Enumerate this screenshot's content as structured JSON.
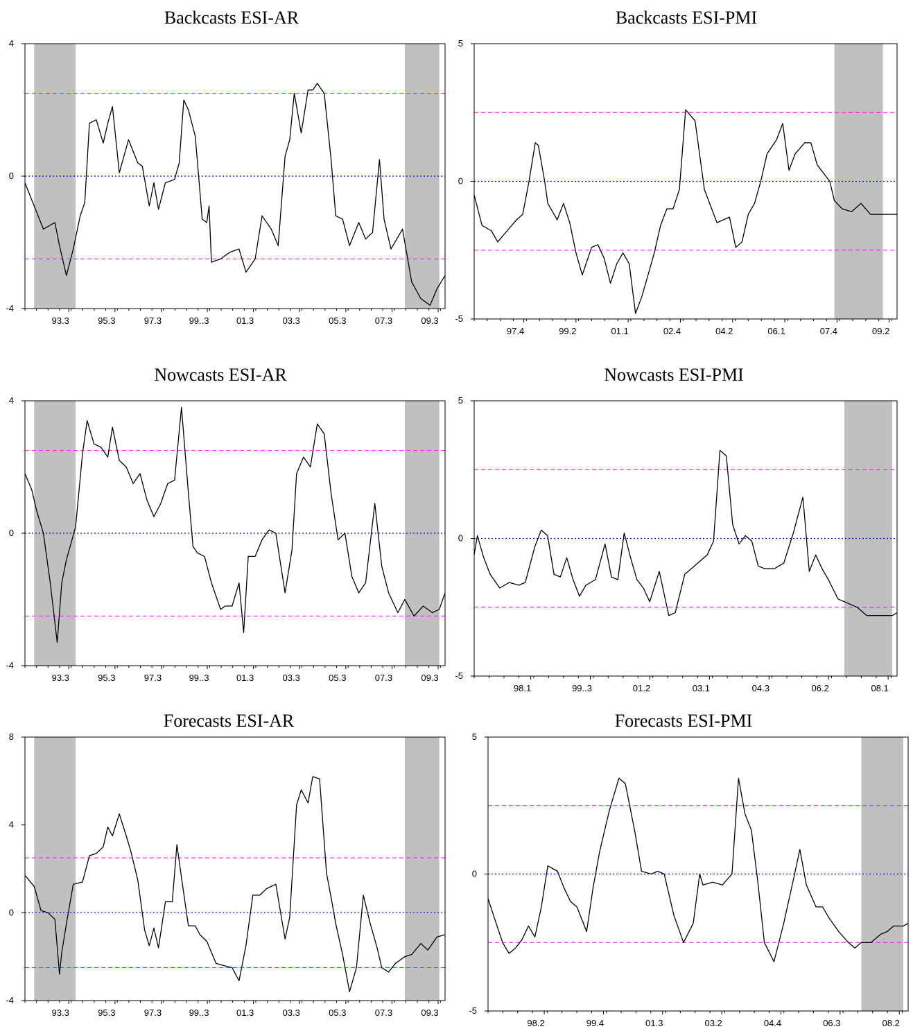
{
  "colors": {
    "threshold": "#ff00ff",
    "zero_line": "#0000c0",
    "shade": "#c0c0c0",
    "series": "#000000"
  },
  "chart_data": [
    {
      "type": "line",
      "title": "Backcasts ESI-AR",
      "ylim": [
        -4,
        4
      ],
      "yticks": [
        "4",
        "0",
        "-4"
      ],
      "xticks": [
        "93.3",
        "95.3",
        "97.3",
        "99..3",
        "01.3",
        "03.3",
        "05.3",
        "07.3",
        "09.3"
      ],
      "x_start": "1991.5",
      "x_end": "2009.75",
      "shaded": [
        [
          "1991.9",
          "1993.7"
        ],
        [
          "2008.0",
          "2009.5"
        ]
      ],
      "thresholds": [
        2.5,
        -2.5
      ],
      "zero_line": 0,
      "x": [
        1991.5,
        1991.9,
        1992.3,
        1992.8,
        1993.0,
        1993.3,
        1993.6,
        1993.9,
        1994.1,
        1994.3,
        1994.6,
        1994.9,
        1995.1,
        1995.3,
        1995.6,
        1996.0,
        1996.4,
        1996.6,
        1996.9,
        1997.1,
        1997.3,
        1997.6,
        1998.0,
        1998.2,
        1998.4,
        1998.6,
        1998.9,
        1999.2,
        1999.4,
        1999.5,
        1999.6,
        2000.0,
        2000.4,
        2000.8,
        2001.1,
        2001.5,
        2001.8,
        2002.2,
        2002.5,
        2002.8,
        2003.0,
        2003.2,
        2003.5,
        2003.8,
        2004.0,
        2004.2,
        2004.5,
        2004.8,
        2005.0,
        2005.3,
        2005.6,
        2006.0,
        2006.3,
        2006.6,
        2006.9,
        2007.1,
        2007.4,
        2007.9,
        2008.3,
        2008.7,
        2009.1,
        2009.4,
        2009.75
      ],
      "series": [
        {
          "values": [
            -0.2,
            -0.9,
            -1.6,
            -1.4,
            -2.1,
            -3.0,
            -2.2,
            -1.2,
            -0.8,
            1.6,
            1.7,
            1.0,
            1.6,
            2.1,
            0.1,
            1.1,
            0.4,
            0.3,
            -0.9,
            -0.2,
            -1.0,
            -0.2,
            -0.1,
            0.4,
            2.3,
            2.0,
            1.2,
            -1.3,
            -1.4,
            -0.9,
            -2.6,
            -2.5,
            -2.3,
            -2.2,
            -2.9,
            -2.5,
            -1.2,
            -1.6,
            -2.1,
            0.6,
            1.1,
            2.5,
            1.3,
            2.6,
            2.6,
            2.8,
            2.5,
            0.5,
            -1.2,
            -1.3,
            -2.1,
            -1.4,
            -1.9,
            -1.7,
            0.5,
            -1.3,
            -2.2,
            -1.6,
            -3.2,
            -3.7,
            -3.9,
            -3.4,
            -3.0
          ]
        }
      ]
    },
    {
      "type": "line",
      "title": "Backcasts ESI-PMI",
      "ylim": [
        -5,
        5
      ],
      "yticks": [
        "5",
        "0",
        "-5"
      ],
      "xticks": [
        "97.4",
        "99.2",
        "01.1",
        "02.4",
        "04.2",
        "06.1",
        "07.4",
        "09.2"
      ],
      "x_start": "1996.25",
      "x_end": "2009.75",
      "shaded": [
        [
          "2007.75",
          "2009.3"
        ]
      ],
      "thresholds": [
        2.5,
        -2.5
      ],
      "zero_line": 0,
      "x": [
        1996.25,
        1996.5,
        1996.8,
        1997.0,
        1997.3,
        1997.6,
        1997.8,
        1998.0,
        1998.2,
        1998.3,
        1998.5,
        1998.6,
        1998.8,
        1998.9,
        1999.1,
        1999.3,
        1999.5,
        1999.7,
        2000.0,
        2000.2,
        2000.4,
        2000.6,
        2000.8,
        2001.0,
        2001.2,
        2001.4,
        2001.6,
        2001.8,
        2002.0,
        2002.2,
        2002.4,
        2002.6,
        2002.8,
        2003.0,
        2003.3,
        2003.6,
        2004.0,
        2004.2,
        2004.4,
        2004.6,
        2004.8,
        2005.0,
        2005.2,
        2005.4,
        2005.6,
        2005.9,
        2006.1,
        2006.3,
        2006.5,
        2006.8,
        2007.0,
        2007.2,
        2007.4,
        2007.6,
        2007.75,
        2008.0,
        2008.3,
        2008.6,
        2008.9,
        2009.2,
        2009.5,
        2009.75
      ],
      "series": [
        {
          "values": [
            -0.5,
            -1.6,
            -1.8,
            -2.2,
            -1.8,
            -1.4,
            -1.2,
            0.0,
            1.4,
            1.3,
            0.0,
            -0.8,
            -1.2,
            -1.4,
            -0.8,
            -1.5,
            -2.6,
            -3.4,
            -2.4,
            -2.3,
            -2.8,
            -3.7,
            -3.0,
            -2.6,
            -3.0,
            -4.8,
            -4.2,
            -3.4,
            -2.6,
            -1.6,
            -1.0,
            -1.0,
            -0.3,
            2.6,
            2.2,
            -0.3,
            -1.5,
            -1.4,
            -1.3,
            -2.4,
            -2.2,
            -1.2,
            -0.8,
            0.0,
            1.0,
            1.5,
            2.1,
            0.4,
            1.0,
            1.4,
            1.4,
            0.6,
            0.3,
            0.0,
            -0.7,
            -1.0,
            -1.1,
            -0.8,
            -1.2,
            -1.2,
            -1.2,
            -1.2
          ]
        }
      ]
    },
    {
      "type": "line",
      "title": "Nowcasts ESI-AR",
      "ylim": [
        -4,
        4
      ],
      "yticks": [
        "4",
        "0",
        "-4"
      ],
      "xticks": [
        "93.3",
        "95.3",
        "97.3",
        "99..3",
        "01.3",
        "03.3",
        "05.3",
        "07.3",
        "09.3"
      ],
      "x_start": "1991.5",
      "x_end": "2009.75",
      "shaded": [
        [
          "1991.9",
          "1993.7"
        ],
        [
          "2008.0",
          "2009.5"
        ]
      ],
      "thresholds": [
        2.5,
        -2.5
      ],
      "zero_line": 0,
      "x": [
        1991.5,
        1991.8,
        1992.0,
        1992.3,
        1992.6,
        1992.9,
        1993.1,
        1993.3,
        1993.7,
        1994.0,
        1994.2,
        1994.5,
        1994.8,
        1995.1,
        1995.3,
        1995.6,
        1995.9,
        1996.2,
        1996.5,
        1996.8,
        1997.1,
        1997.4,
        1997.7,
        1998.0,
        1998.3,
        1998.6,
        1998.8,
        1999.0,
        1999.3,
        1999.6,
        2000.0,
        2000.2,
        2000.5,
        2000.8,
        2001.0,
        2001.2,
        2001.5,
        2001.8,
        2002.1,
        2002.4,
        2002.8,
        2003.1,
        2003.3,
        2003.6,
        2003.9,
        2004.2,
        2004.5,
        2004.8,
        2005.1,
        2005.4,
        2005.7,
        2006.0,
        2006.3,
        2006.7,
        2007.0,
        2007.3,
        2007.7,
        2008.0,
        2008.4,
        2008.8,
        2009.2,
        2009.5,
        2009.75
      ],
      "series": [
        {
          "values": [
            1.8,
            1.3,
            0.7,
            0.0,
            -1.5,
            -3.3,
            -1.5,
            -0.8,
            0.2,
            2.4,
            3.4,
            2.7,
            2.6,
            2.3,
            3.2,
            2.2,
            2.0,
            1.5,
            1.8,
            1.0,
            0.5,
            0.9,
            1.5,
            1.6,
            3.8,
            1.2,
            -0.4,
            -0.6,
            -0.7,
            -1.5,
            -2.3,
            -2.2,
            -2.2,
            -1.5,
            -3.0,
            -0.7,
            -0.7,
            -0.2,
            0.1,
            0.0,
            -1.8,
            -0.5,
            1.8,
            2.3,
            2.0,
            3.3,
            3.0,
            1.2,
            -0.2,
            0.0,
            -1.3,
            -1.8,
            -1.5,
            0.9,
            -1.0,
            -1.8,
            -2.4,
            -2.0,
            -2.5,
            -2.2,
            -2.4,
            -2.3,
            -1.8
          ]
        }
      ]
    },
    {
      "type": "line",
      "title": "Nowcasts ESI-PMI",
      "ylim": [
        -5,
        5
      ],
      "yticks": [
        "5",
        "0",
        "-5"
      ],
      "xticks": [
        "98.1",
        "99..3",
        "01.2",
        "03.1",
        "04.3",
        "06.2",
        "08.1"
      ],
      "x_start": "1996.5",
      "x_end": "2009.75",
      "shaded": [
        [
          "2008.1",
          "2009.6"
        ]
      ],
      "thresholds": [
        2.5,
        -2.5
      ],
      "zero_line": 0,
      "x": [
        1996.5,
        1996.6,
        1996.8,
        1997.0,
        1997.3,
        1997.6,
        1997.9,
        1998.1,
        1998.4,
        1998.6,
        1998.8,
        1999.0,
        1999.2,
        1999.4,
        1999.6,
        1999.8,
        2000.0,
        2000.3,
        2000.6,
        2000.8,
        2001.0,
        2001.2,
        2001.4,
        2001.6,
        2001.8,
        2002.0,
        2002.3,
        2002.6,
        2002.8,
        2003.1,
        2003.3,
        2003.5,
        2003.8,
        2004.0,
        2004.2,
        2004.4,
        2004.6,
        2004.8,
        2005.0,
        2005.2,
        2005.4,
        2005.6,
        2005.9,
        2006.2,
        2006.5,
        2006.8,
        2007.0,
        2007.2,
        2007.4,
        2007.6,
        2007.9,
        2008.1,
        2008.5,
        2008.8,
        2009.0,
        2009.3,
        2009.6,
        2009.75
      ],
      "series": [
        {
          "values": [
            -0.6,
            0.1,
            -0.7,
            -1.3,
            -1.8,
            -1.6,
            -1.7,
            -1.6,
            -0.3,
            0.3,
            0.1,
            -1.3,
            -1.4,
            -0.7,
            -1.5,
            -2.1,
            -1.7,
            -1.5,
            -0.2,
            -1.4,
            -1.5,
            0.2,
            -0.7,
            -1.5,
            -1.8,
            -2.3,
            -1.2,
            -2.8,
            -2.7,
            -1.3,
            -1.1,
            -0.9,
            -0.6,
            -0.1,
            3.2,
            3.0,
            0.5,
            -0.2,
            0.1,
            -0.1,
            -1.0,
            -1.1,
            -1.1,
            -0.9,
            0.2,
            1.5,
            -1.2,
            -0.6,
            -1.1,
            -1.5,
            -2.2,
            -2.3,
            -2.5,
            -2.8,
            -2.8,
            -2.8,
            -2.8,
            -2.7
          ]
        }
      ]
    },
    {
      "type": "line",
      "title": "Forecasts ESI-AR",
      "ylim": [
        -4,
        8
      ],
      "yticks": [
        "8",
        "4",
        "0",
        "-4"
      ],
      "xticks": [
        "93.3",
        "95.3",
        "97.3",
        "99..3",
        "01.3",
        "03.3",
        "05.3",
        "07.3",
        "09.3"
      ],
      "x_start": "1991.5",
      "x_end": "2009.75",
      "shaded": [
        [
          "1991.9",
          "1993.7"
        ],
        [
          "2008.0",
          "2009.5"
        ]
      ],
      "thresholds": [
        2.5,
        -2.5
      ],
      "zero_line": 0,
      "x": [
        1991.5,
        1991.9,
        1992.2,
        1992.5,
        1992.8,
        1993.0,
        1993.1,
        1993.3,
        1993.6,
        1994.0,
        1994.3,
        1994.6,
        1994.9,
        1995.1,
        1995.3,
        1995.6,
        1995.9,
        1996.1,
        1996.4,
        1996.7,
        1996.9,
        1997.1,
        1997.3,
        1997.6,
        1997.9,
        1998.1,
        1998.3,
        1998.6,
        1998.9,
        1999.1,
        1999.4,
        1999.8,
        2000.1,
        2000.5,
        2000.8,
        2001.1,
        2001.4,
        2001.7,
        2002.0,
        2002.4,
        2002.8,
        2003.0,
        2003.3,
        2003.5,
        2003.8,
        2004.0,
        2004.3,
        2004.6,
        2004.8,
        2005.0,
        2005.3,
        2005.6,
        2005.9,
        2006.2,
        2006.5,
        2006.8,
        2007.0,
        2007.3,
        2007.6,
        2008.0,
        2008.3,
        2008.7,
        2009.0,
        2009.4,
        2009.75
      ],
      "series": [
        {
          "values": [
            1.7,
            1.2,
            0.1,
            0.0,
            -0.3,
            -2.8,
            -1.8,
            -0.5,
            1.3,
            1.4,
            2.6,
            2.7,
            3.0,
            3.9,
            3.5,
            4.5,
            3.5,
            2.8,
            1.5,
            -0.8,
            -1.5,
            -0.7,
            -1.6,
            0.5,
            0.5,
            3.1,
            1.6,
            -0.6,
            -0.6,
            -1.0,
            -1.3,
            -2.3,
            -2.4,
            -2.5,
            -3.1,
            -1.5,
            0.8,
            0.8,
            1.1,
            1.3,
            -1.2,
            -0.2,
            4.9,
            5.6,
            5.0,
            6.2,
            6.1,
            1.8,
            0.7,
            -0.5,
            -1.9,
            -3.6,
            -2.5,
            0.8,
            -0.5,
            -1.6,
            -2.5,
            -2.7,
            -2.3,
            -2.0,
            -1.9,
            -1.4,
            -1.7,
            -1.1,
            -1.0
          ]
        }
      ]
    },
    {
      "type": "line",
      "title": "Forecasts ESI-PMI",
      "ylim": [
        -5,
        5
      ],
      "yticks": [
        "5",
        "0",
        "-5"
      ],
      "xticks": [
        "98.2",
        "99.4",
        "01.3",
        "03.2",
        "04.4",
        "06.3",
        "08.2"
      ],
      "x_start": "1996.75",
      "x_end": "2009.75",
      "shaded": [
        [
          "2008.3",
          "2009.6"
        ]
      ],
      "thresholds": [
        2.5,
        -2.5
      ],
      "zero_line": 0,
      "x": [
        1996.75,
        1997.0,
        1997.2,
        1997.4,
        1997.6,
        1997.8,
        1998.0,
        1998.2,
        1998.4,
        1998.6,
        1998.9,
        1999.1,
        1999.3,
        1999.5,
        1999.8,
        2000.0,
        2000.2,
        2000.5,
        2000.8,
        2001.0,
        2001.3,
        2001.5,
        2001.8,
        2002.0,
        2002.2,
        2002.5,
        2002.8,
        2003.1,
        2003.3,
        2003.4,
        2003.7,
        2004.0,
        2004.3,
        2004.5,
        2004.7,
        2004.9,
        2005.1,
        2005.3,
        2005.6,
        2005.9,
        2006.2,
        2006.4,
        2006.6,
        2006.9,
        2007.1,
        2007.3,
        2007.6,
        2007.9,
        2008.1,
        2008.3,
        2008.6,
        2008.9,
        2009.1,
        2009.3,
        2009.6,
        2009.75
      ],
      "series": [
        {
          "values": [
            -0.9,
            -1.8,
            -2.5,
            -2.9,
            -2.7,
            -2.4,
            -1.9,
            -2.3,
            -1.2,
            0.3,
            0.1,
            -0.5,
            -1.0,
            -1.2,
            -2.1,
            -0.5,
            0.8,
            2.3,
            3.5,
            3.3,
            1.5,
            0.1,
            0.0,
            0.1,
            0.0,
            -1.5,
            -2.5,
            -1.8,
            0.0,
            -0.4,
            -0.3,
            -0.4,
            0.0,
            3.5,
            2.2,
            1.6,
            -0.3,
            -2.5,
            -3.2,
            -1.8,
            -0.2,
            0.9,
            -0.4,
            -1.2,
            -1.2,
            -1.6,
            -2.1,
            -2.5,
            -2.7,
            -2.5,
            -2.5,
            -2.2,
            -2.1,
            -1.9,
            -1.9,
            -1.8
          ]
        }
      ]
    }
  ]
}
